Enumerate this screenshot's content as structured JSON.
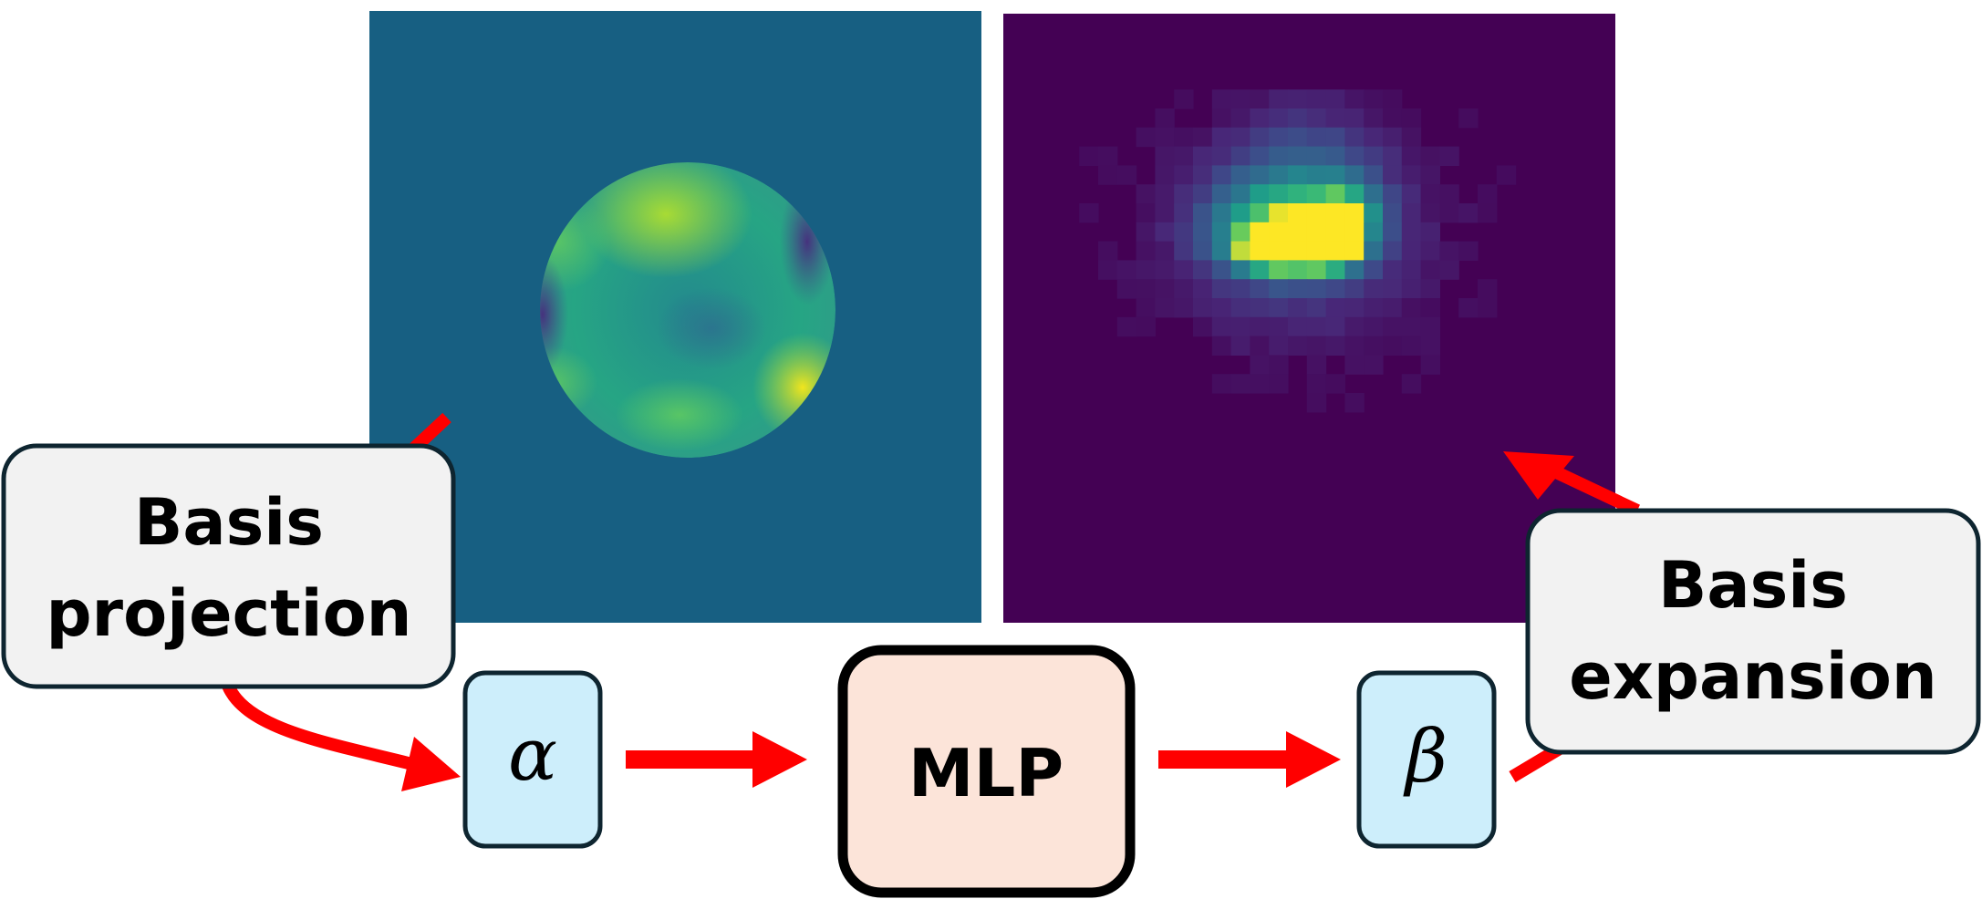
{
  "labels": {
    "projection_line1": "Basis",
    "projection_line2": "projection",
    "expansion_line1": "Basis",
    "expansion_line2": "expansion",
    "alpha": "α",
    "mlp": "MLP",
    "beta": "β"
  },
  "colors": {
    "arrow": "#ff0000",
    "callout_fill": "#f2f2f2",
    "callout_stroke": "#0e2530",
    "coeff_fill": "#cdeefb",
    "mlp_fill": "#fce4d9",
    "input_background": "#175f82",
    "output_background": "#440154"
  },
  "panels": {
    "input_field": "viridis-colored circular input field",
    "output_field": "pixelated output heatmap"
  }
}
